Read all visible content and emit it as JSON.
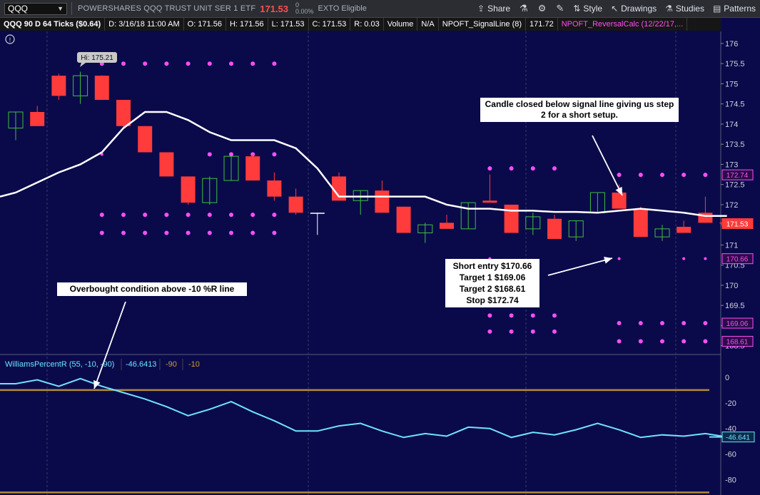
{
  "toolbar": {
    "symbol": "QQQ",
    "company": "POWERSHARES QQQ TRUST UNIT SER 1 ETF",
    "last": "171.53",
    "change_top": "0",
    "change_bottom": "0.00%",
    "eligible": "EXTO Eligible",
    "share": "Share",
    "style": "Style",
    "drawings": "Drawings",
    "studies": "Studies",
    "patterns": "Patterns"
  },
  "infobar": {
    "period": "QQQ 90 D 64 Ticks ($0.64)",
    "date": "D:  3/16/18 11:00 AM",
    "open": "O:  171.56",
    "high": "H:  171.56",
    "low": "L:  171.53",
    "close": "C:  171.53",
    "range": "R:  0.03",
    "volume_label": "Volume",
    "volume_value": "N/A",
    "signal_label": "NPOFT_SignalLine (8)",
    "signal_value": "171.72",
    "reversal_label": "NPOFT_ReversalCalc (12/22/17,..."
  },
  "price_axis": {
    "min": 168.3,
    "max": 176.3,
    "ticks": [
      "176",
      "175.5",
      "175",
      "174.5",
      "174",
      "173.5",
      "173",
      "172.5",
      "172",
      "171.5",
      "171",
      "170.5",
      "170",
      "169.5",
      "169",
      "168.5"
    ],
    "badges": [
      {
        "value": 172.74,
        "label": "172.74",
        "color": "#ff4ef6",
        "text": "#ff4ef6",
        "bg": "#2a0b4a"
      },
      {
        "value": 171.53,
        "label": "171.53",
        "color": "#ff3b3b",
        "text": "#ffffff",
        "bg": "#ff3b3b"
      },
      {
        "value": 170.66,
        "label": "170.66",
        "color": "#ff4ef6",
        "text": "#ff4ef6",
        "bg": "#2a0b4a"
      },
      {
        "value": 169.06,
        "label": "169.06",
        "color": "#ff4ef6",
        "text": "#ff4ef6",
        "bg": "#2a0b4a"
      },
      {
        "value": 168.61,
        "label": "168.61",
        "color": "#ff4ef6",
        "text": "#ff4ef6",
        "bg": "#2a0b4a"
      }
    ]
  },
  "hi_label": "Hi: 175.21",
  "chart_data": {
    "type": "candlestick",
    "candles": [
      {
        "o": 173.9,
        "h": 174.3,
        "l": 173.6,
        "c": 174.3
      },
      {
        "o": 174.3,
        "h": 174.45,
        "l": 173.95,
        "c": 173.95
      },
      {
        "o": 175.2,
        "h": 175.25,
        "l": 174.6,
        "c": 174.7
      },
      {
        "o": 174.7,
        "h": 175.3,
        "l": 174.5,
        "c": 175.2
      },
      {
        "o": 175.2,
        "h": 175.21,
        "l": 174.6,
        "c": 174.6
      },
      {
        "o": 174.6,
        "h": 174.6,
        "l": 173.9,
        "c": 173.95
      },
      {
        "o": 173.95,
        "h": 173.95,
        "l": 173.3,
        "c": 173.3
      },
      {
        "o": 173.3,
        "h": 173.3,
        "l": 172.7,
        "c": 172.7
      },
      {
        "o": 172.7,
        "h": 172.7,
        "l": 172.0,
        "c": 172.05
      },
      {
        "o": 172.05,
        "h": 172.7,
        "l": 172.0,
        "c": 172.65
      },
      {
        "o": 172.6,
        "h": 173.2,
        "l": 172.6,
        "c": 173.2
      },
      {
        "o": 173.2,
        "h": 173.25,
        "l": 172.6,
        "c": 172.6
      },
      {
        "o": 172.6,
        "h": 172.8,
        "l": 172.1,
        "c": 172.2
      },
      {
        "o": 172.2,
        "h": 172.4,
        "l": 171.75,
        "c": 171.8
      },
      {
        "o": 171.8,
        "h": 171.8,
        "l": 171.25,
        "c": 171.8
      },
      {
        "o": 172.7,
        "h": 172.8,
        "l": 172.1,
        "c": 172.1
      },
      {
        "o": 172.1,
        "h": 172.35,
        "l": 171.75,
        "c": 172.35
      },
      {
        "o": 172.35,
        "h": 172.6,
        "l": 171.8,
        "c": 171.8
      },
      {
        "o": 171.95,
        "h": 171.95,
        "l": 171.3,
        "c": 171.3
      },
      {
        "o": 171.3,
        "h": 171.55,
        "l": 171.05,
        "c": 171.5
      },
      {
        "o": 171.55,
        "h": 171.75,
        "l": 171.4,
        "c": 171.4
      },
      {
        "o": 171.4,
        "h": 172.05,
        "l": 171.4,
        "c": 172.05
      },
      {
        "o": 172.1,
        "h": 172.75,
        "l": 172.05,
        "c": 172.05
      },
      {
        "o": 172.0,
        "h": 172.0,
        "l": 171.3,
        "c": 171.3
      },
      {
        "o": 171.4,
        "h": 171.8,
        "l": 171.25,
        "c": 171.7
      },
      {
        "o": 171.65,
        "h": 171.75,
        "l": 171.15,
        "c": 171.15
      },
      {
        "o": 171.2,
        "h": 171.6,
        "l": 171.1,
        "c": 171.6
      },
      {
        "o": 171.8,
        "h": 172.3,
        "l": 171.8,
        "c": 172.3
      },
      {
        "o": 172.3,
        "h": 172.5,
        "l": 171.9,
        "c": 171.9
      },
      {
        "o": 171.9,
        "h": 171.95,
        "l": 171.2,
        "c": 171.2
      },
      {
        "o": 171.2,
        "h": 171.5,
        "l": 171.1,
        "c": 171.4
      },
      {
        "o": 171.45,
        "h": 171.6,
        "l": 171.3,
        "c": 171.3
      },
      {
        "o": 171.8,
        "h": 172.2,
        "l": 171.55,
        "c": 171.55
      },
      {
        "o": 171.56,
        "h": 171.56,
        "l": 171.53,
        "c": 171.53
      }
    ],
    "signal_line": [
      172.3,
      172.55,
      172.8,
      173.0,
      173.3,
      173.9,
      174.3,
      174.3,
      174.1,
      173.8,
      173.6,
      173.6,
      173.6,
      173.4,
      172.9,
      172.2,
      172.2,
      172.2,
      172.2,
      172.2,
      172.0,
      171.9,
      171.9,
      171.85,
      171.85,
      171.82,
      171.82,
      171.8,
      171.85,
      171.9,
      171.85,
      171.8,
      171.72,
      171.72
    ],
    "williams_r": [
      -5,
      -2,
      -7,
      -1,
      -7,
      -12,
      -17,
      -23,
      -30,
      -25,
      -19,
      -27,
      -34,
      -42,
      -42,
      -38,
      -36,
      -42,
      -47,
      -44,
      -46,
      -39,
      -40,
      -47,
      -43,
      -45,
      -41,
      -36,
      -41,
      -47,
      -45,
      -46,
      -44,
      -46.64
    ],
    "wr_range": [
      -92,
      5
    ],
    "wr_overbought": -10,
    "wr_oversold": -90,
    "wr_ticks": [
      "0",
      "-20",
      "-40",
      "-60",
      "-80"
    ],
    "wr_badge": "-46.641",
    "reversal_dots": {
      "bands": [
        {
          "level": 175.5,
          "segments": [
            [
              4,
              12
            ]
          ]
        },
        {
          "level": 173.25,
          "segments": [
            [
              4,
              4
            ],
            [
              9,
              12
            ]
          ]
        },
        {
          "level": 171.75,
          "segments": [
            [
              4,
              12
            ]
          ]
        },
        {
          "level": 171.3,
          "segments": [
            [
              4,
              12
            ]
          ]
        },
        {
          "level": 172.9,
          "segments": [
            [
              22,
              25
            ]
          ]
        },
        {
          "level": 172.74,
          "segments": [
            [
              28,
              32
            ]
          ]
        },
        {
          "level": 170.66,
          "segments": [
            [
              22,
              22
            ],
            [
              28,
              28
            ],
            [
              31,
              31
            ],
            [
              32,
              32
            ]
          ]
        },
        {
          "level": 169.25,
          "segments": [
            [
              22,
              25
            ]
          ]
        },
        {
          "level": 168.85,
          "segments": [
            [
              22,
              25
            ]
          ]
        },
        {
          "level": 169.06,
          "segments": [
            [
              28,
              32
            ]
          ]
        },
        {
          "level": 168.61,
          "segments": [
            [
              28,
              32
            ]
          ]
        }
      ]
    }
  },
  "wr_header": {
    "label": "WilliamsPercentR (55, -10, -90)",
    "value": "-46.6413",
    "oversold": "-90",
    "overbought": "-10"
  },
  "annotations": {
    "signal_note": "Candle closed below signal line giving us step 2 for a short setup.",
    "trade_note_lines": [
      "Short entry $170.66",
      "Target 1 $169.06",
      "Target 2 $168.61",
      "Stop $172.74"
    ],
    "overbought_note": "Overbought condition above -10 %R line"
  },
  "colors": {
    "bg": "#0a0a4a",
    "up_candle": "#3fbf3f",
    "down_candle": "#ff3b3b",
    "signal": "#ffffff",
    "dots": "#ff4ef6",
    "wr_line": "#6fe3ff",
    "wr_levels": "#b08a3a"
  }
}
